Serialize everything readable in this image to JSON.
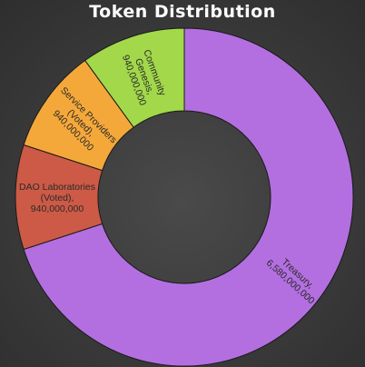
{
  "chart_data": {
    "type": "pie",
    "title": "Token Distribution",
    "categories": [
      "Treasury",
      "DAO Laboratories (Voted)",
      "Service Providers (Voted)",
      "Community Genesis"
    ],
    "values": [
      6580000000,
      940000000,
      940000000,
      940000000
    ],
    "labels": [
      [
        "Treasury,",
        "6,580,000,000"
      ],
      [
        "DAO Laboratories",
        "(Voted),",
        "940,000,000"
      ],
      [
        "Service Providers",
        "(Voted),",
        "940,000,000"
      ],
      [
        "Community",
        "Genesis,",
        "940,000,000"
      ]
    ],
    "colors": [
      "#b36fe0",
      "#cc5a46",
      "#f5a83a",
      "#a2d84a"
    ],
    "donut": true,
    "start_angle_deg": 0,
    "direction": "clockwise",
    "legend": "none"
  }
}
